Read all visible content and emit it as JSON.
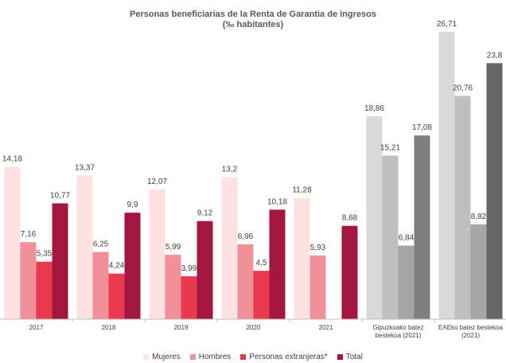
{
  "chart_data": {
    "type": "bar",
    "title": "Personas  beneficiarias de la Renta de Garantia de ingresos",
    "subtitle": "(‰ habitantes)",
    "categories": [
      "2017",
      "2018",
      "2019",
      "2020",
      "2021",
      "Gipuzkoako batez bestekoa (2021)",
      "EAEko batez bestekoa (2021)"
    ],
    "series": [
      {
        "name": "Mujeres",
        "color": "#fde2e0",
        "colors": [
          "#fde2e0",
          "#fde2e0",
          "#fde2e0",
          "#fde2e0",
          "#fde2e0",
          "#d9d9d9",
          "#d9d9d9"
        ],
        "values": [
          14.18,
          13.37,
          12.07,
          13.2,
          11.28,
          18.86,
          26.71
        ],
        "value_labels": [
          "14,18",
          "13,37",
          "12,07",
          "13,2",
          "11,28",
          "18,86",
          "26,71"
        ]
      },
      {
        "name": "Hombres",
        "color": "#f0919a",
        "colors": [
          "#f0919a",
          "#f0919a",
          "#f0919a",
          "#f0919a",
          "#f0919a",
          "#bfbfbf",
          "#bfbfbf"
        ],
        "values": [
          7.16,
          6.25,
          5.99,
          6.96,
          5.93,
          15.21,
          20.76
        ],
        "value_labels": [
          "7,16",
          "6,25",
          "5,99",
          "6,96",
          "5,93",
          "15,21",
          "20,76"
        ]
      },
      {
        "name": "Personas extranjeras*",
        "color": "#e8394f",
        "colors": [
          "#e8394f",
          "#e8394f",
          "#e8394f",
          "#e8394f",
          "#e8394f",
          "#a6a6a6",
          "#a6a6a6"
        ],
        "values": [
          5.35,
          4.24,
          3.99,
          4.5,
          null,
          6.84,
          8.82
        ],
        "value_labels": [
          "5,35",
          "4,24",
          "3,99",
          "4,5",
          null,
          "6,84",
          "8,82"
        ]
      },
      {
        "name": "Total",
        "color": "#a3173f",
        "colors": [
          "#a3173f",
          "#a3173f",
          "#a3173f",
          "#a3173f",
          "#a3173f",
          "#7f7f7f",
          "#666666"
        ],
        "values": [
          10.77,
          9.9,
          9.12,
          10.18,
          8.68,
          17.08,
          23.8
        ],
        "value_labels": [
          "10,77",
          "9,9",
          "9,12",
          "10,18",
          "8,68",
          "17,08",
          "23,8"
        ]
      }
    ]
  }
}
